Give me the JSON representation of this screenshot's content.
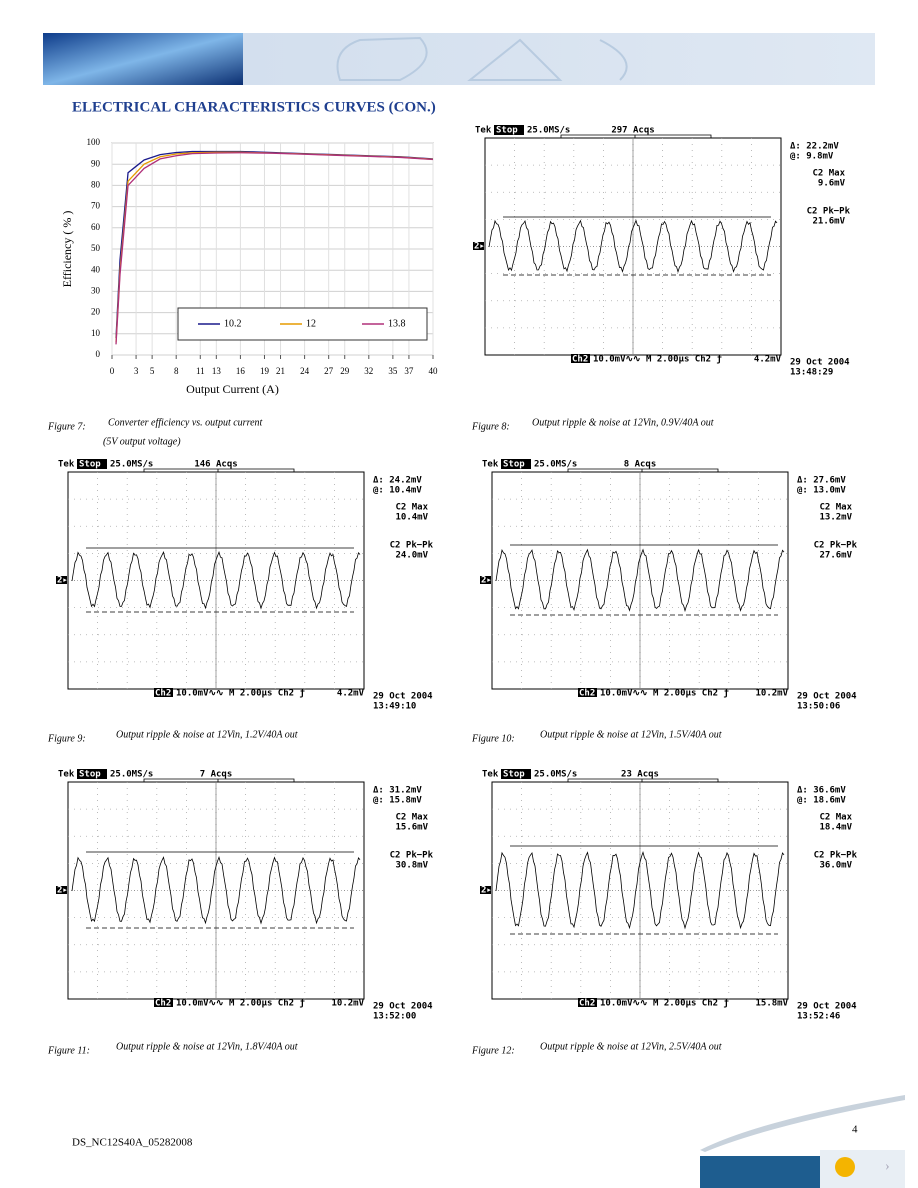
{
  "header": {
    "title": "ELECTRICAL CHARACTERISTICS CURVES (CON.)"
  },
  "chart_data": {
    "type": "line",
    "x_label": "Output Current (A)",
    "y_label": "Efficiency ( % )",
    "x": [
      0.5,
      1,
      2,
      3,
      4,
      6,
      8,
      10,
      13,
      16,
      20,
      24,
      28,
      32,
      36,
      40
    ],
    "series": [
      {
        "name": "10.2",
        "color": "#1a1a8c",
        "values": [
          8,
          45,
          86,
          89,
          92,
          94.5,
          95.5,
          96,
          96,
          96,
          95.5,
          95,
          94.5,
          94,
          93.5,
          92.5
        ]
      },
      {
        "name": "12",
        "color": "#e69b00",
        "values": [
          6,
          40,
          82,
          86,
          90,
          93.5,
          94.8,
          95.4,
          95.6,
          95.6,
          95.3,
          94.8,
          94.3,
          93.8,
          93.3,
          92.3
        ]
      },
      {
        "name": "13.8",
        "color": "#b0307a",
        "values": [
          5,
          38,
          80,
          84,
          88,
          92.5,
          94,
          95,
          95.3,
          95.4,
          95.2,
          94.7,
          94.2,
          93.7,
          93.2,
          92.2
        ]
      }
    ],
    "xlim": [
      0,
      40
    ],
    "xticks": [
      0,
      3,
      5,
      8,
      11,
      13,
      16,
      19,
      21,
      24,
      27,
      29,
      32,
      35,
      37,
      40
    ],
    "ylim": [
      0,
      100
    ],
    "yticks": [
      0,
      10,
      20,
      30,
      40,
      50,
      60,
      70,
      80,
      90,
      100
    ],
    "grid": true
  },
  "figures": [
    {
      "label": "Figure 7:",
      "caption": "Converter efficiency vs. output current",
      "caption2": "(5V output voltage)"
    },
    {
      "label": "Figure 8:",
      "caption": "Output ripple & noise at 12Vin, 0.9V/40A out"
    },
    {
      "label": "Figure 9:",
      "caption": "Output ripple & noise at 12Vin, 1.2V/40A out"
    },
    {
      "label": "Figure 10:",
      "caption": "Output ripple & noise at 12Vin, 1.5V/40A out"
    },
    {
      "label": "Figure 11:",
      "caption": "Output ripple & noise at 12Vin, 1.8V/40A out"
    },
    {
      "label": "Figure 12:",
      "caption": "Output ripple & noise at 12Vin, 2.5V/40A out"
    }
  ],
  "scopes": [
    {
      "brand": "Tek",
      "state": "Stop",
      "rate": "25.0MS/s",
      "acqs": "297 Acqs",
      "delta": "Δ: 22.2mV",
      "at": "@: 9.8mV",
      "max_label": "C2 Max",
      "max": "9.6mV",
      "pkpk_label": "C2 Pk−Pk",
      "pkpk": "21.6mV",
      "channel": "Ch2",
      "settings": "10.0mV∿∿ M 2.00µs  Ch2 ƒ",
      "trigger": "4.2mV",
      "date": "29 Oct 2004",
      "time": "13:48:29",
      "marker": "2▸"
    },
    {
      "brand": "Tek",
      "state": "Stop",
      "rate": "25.0MS/s",
      "acqs": "146 Acqs",
      "delta": "Δ: 24.2mV",
      "at": "@: 10.4mV",
      "max_label": "C2 Max",
      "max": "10.4mV",
      "pkpk_label": "C2 Pk−Pk",
      "pkpk": "24.0mV",
      "channel": "Ch2",
      "settings": "10.0mV∿∿ M 2.00µs  Ch2 ƒ",
      "trigger": "4.2mV",
      "date": "29 Oct 2004",
      "time": "13:49:10",
      "marker": "2▸"
    },
    {
      "brand": "Tek",
      "state": "Stop",
      "rate": "25.0MS/s",
      "acqs": "8 Acqs",
      "delta": "Δ: 27.6mV",
      "at": "@: 13.0mV",
      "max_label": "C2 Max",
      "max": "13.2mV",
      "pkpk_label": "C2 Pk−Pk",
      "pkpk": "27.6mV",
      "channel": "Ch2",
      "settings": "10.0mV∿∿ M 2.00µs  Ch2 ƒ",
      "trigger": "10.2mV",
      "date": "29 Oct 2004",
      "time": "13:50:06",
      "marker": "2▸"
    },
    {
      "brand": "Tek",
      "state": "Stop",
      "rate": "25.0MS/s",
      "acqs": "7 Acqs",
      "delta": "Δ: 31.2mV",
      "at": "@: 15.8mV",
      "max_label": "C2 Max",
      "max": "15.6mV",
      "pkpk_label": "C2 Pk−Pk",
      "pkpk": "30.8mV",
      "channel": "Ch2",
      "settings": "10.0mV∿∿ M 2.00µs  Ch2 ƒ",
      "trigger": "10.2mV",
      "date": "29 Oct 2004",
      "time": "13:52:00",
      "marker": "2▸"
    },
    {
      "brand": "Tek",
      "state": "Stop",
      "rate": "25.0MS/s",
      "acqs": "23 Acqs",
      "delta": "Δ: 36.6mV",
      "at": "@: 18.6mV",
      "max_label": "C2 Max",
      "max": "18.4mV",
      "pkpk_label": "C2 Pk−Pk",
      "pkpk": "36.0mV",
      "channel": "Ch2",
      "settings": "10.0mV∿∿ M 2.00µs  Ch2 ƒ",
      "trigger": "15.8mV",
      "date": "29 Oct 2004",
      "time": "13:52:46",
      "marker": "2▸"
    }
  ],
  "footer": {
    "doc_id": "DS_NC12S40A_05282008",
    "page": "4"
  }
}
